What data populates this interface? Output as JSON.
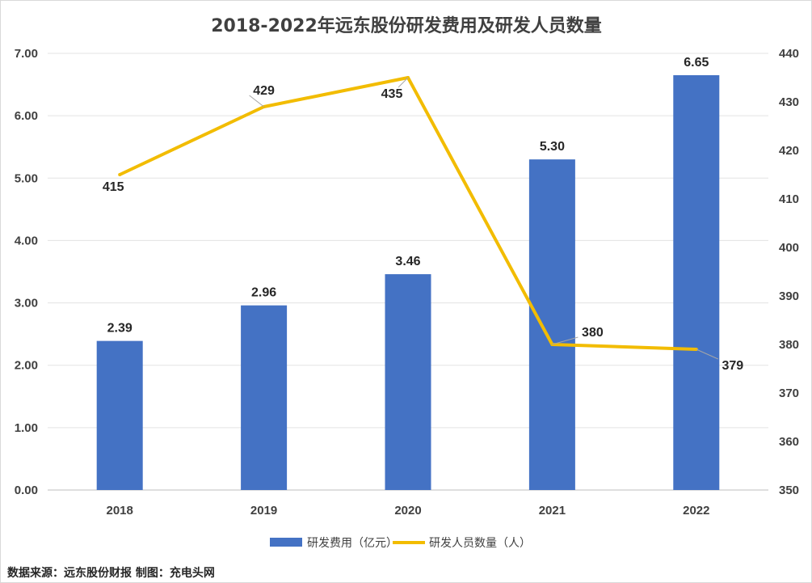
{
  "chart_data": {
    "type": "bar",
    "title": "2018-2022年远东股份研发费用及研发人员数量",
    "categories": [
      "2018",
      "2019",
      "2020",
      "2021",
      "2022"
    ],
    "series": [
      {
        "name": "研发费用（亿元）",
        "type": "bar",
        "axis": "left",
        "color": "#4472C4",
        "values": [
          2.39,
          2.96,
          3.46,
          5.3,
          6.65
        ],
        "labels": [
          "2.39",
          "2.96",
          "3.46",
          "5.30",
          "6.65"
        ]
      },
      {
        "name": "研发人员数量（人）",
        "type": "line",
        "axis": "right",
        "color": "#F2BC00",
        "values": [
          415,
          429,
          435,
          380,
          379
        ],
        "labels": [
          "415",
          "429",
          "435",
          "380",
          "379"
        ]
      }
    ],
    "y_left": {
      "ylim": [
        0,
        7
      ],
      "ticks": [
        "0.00",
        "1.00",
        "2.00",
        "3.00",
        "4.00",
        "5.00",
        "6.00",
        "7.00"
      ]
    },
    "y_right": {
      "ylim": [
        350,
        440
      ],
      "ticks": [
        "350",
        "360",
        "370",
        "380",
        "390",
        "400",
        "410",
        "420",
        "430",
        "440"
      ]
    },
    "grid": true,
    "legend": "bottom"
  },
  "source_note": "数据来源：远东股份财报  制图：充电头网"
}
